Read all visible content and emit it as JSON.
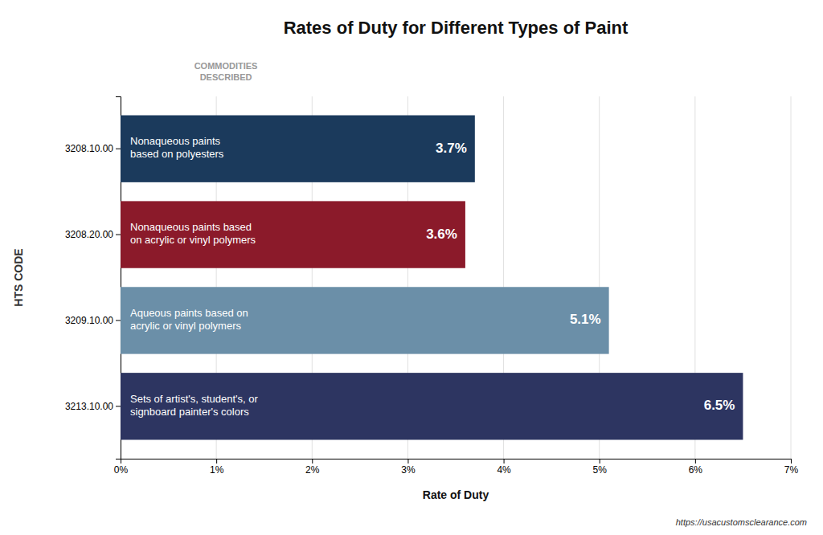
{
  "chart_data": {
    "type": "bar",
    "orientation": "horizontal",
    "title": "Rates of Duty for Different Types of Paint",
    "x_label": "Rate of Duty",
    "y_label": "HTS CODE",
    "categories": [
      "3208.10.00",
      "3208.20.00",
      "3209.10.00",
      "3213.10.00"
    ],
    "values": [
      3.7,
      3.6,
      5.1,
      6.5
    ],
    "value_labels": [
      "3.7%",
      "3.6%",
      "5.1%",
      "6.5%"
    ],
    "data_labels": true,
    "colors": [
      "#1b3a5c",
      "#8b1a2a",
      "#6b8fa8",
      "#2d3561"
    ],
    "descriptions": [
      "Nonaqueous paints\nbased on polyesters",
      "Nonaqueous paints based\non acrylic or vinyl polymers",
      "Aqueous paints based on\nacrylic or vinyl polymers",
      "Sets of artist's, student's, or\nsignboard painter's colors"
    ],
    "annotations": [
      "COMMODITIES\nDESCRIBED",
      "https://usacustomsclearance.com"
    ],
    "xlim": [
      0,
      7
    ],
    "xticks": [
      {
        "value": 0,
        "label": "0%"
      },
      {
        "value": 1,
        "label": "1%"
      },
      {
        "value": 2,
        "label": "2%"
      },
      {
        "value": 3,
        "label": "3%"
      },
      {
        "value": 4,
        "label": "4%"
      },
      {
        "value": 5,
        "label": "5%"
      },
      {
        "value": 6,
        "label": "6%"
      },
      {
        "value": 7,
        "label": "7%"
      }
    ],
    "grid": true
  }
}
